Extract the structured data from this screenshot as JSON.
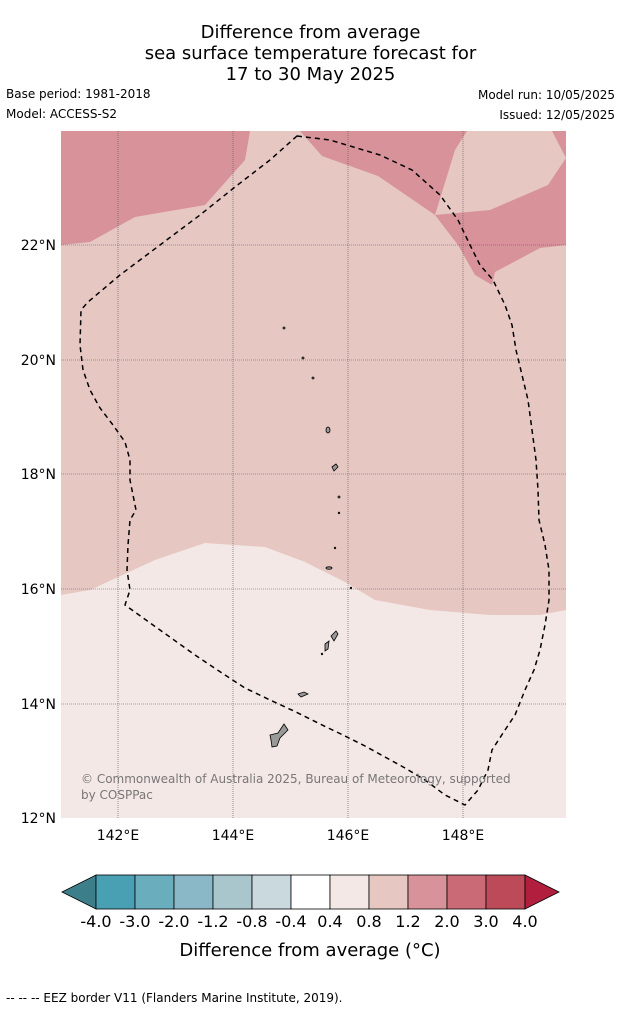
{
  "title": {
    "line1": "Difference from average",
    "line2": "sea surface temperature forecast for",
    "line3": "17 to 30 May 2025"
  },
  "meta": {
    "base_period": "Base period: 1981-2018",
    "model": "Model: ACCESS-S2",
    "model_run": "Model run: 10/05/2025",
    "issued": "Issued: 12/05/2025"
  },
  "map": {
    "lon_range": [
      141.0,
      149.8
    ],
    "lat_range": [
      12.0,
      24.0
    ],
    "lat_ticks": [
      "12°N",
      "14°N",
      "16°N",
      "18°N",
      "20°N",
      "22°N"
    ],
    "lon_ticks": [
      "142°E",
      "144°E",
      "146°E",
      "148°E"
    ],
    "copyright_line1": "© Commonwealth of Australia 2025, Bureau of Meteorology, supported",
    "copyright_line2": "by COSPPac",
    "zones": [
      {
        "category": "0.4 to 0.8",
        "color": "#f4e8e6"
      },
      {
        "category": "0.8 to 1.2",
        "color": "#e6c7c2"
      },
      {
        "category": "1.2 to 2.0",
        "color": "#d7929a"
      }
    ],
    "border_style": "dashed black line"
  },
  "colorbar": {
    "labels": [
      "-4.0",
      "-3.0",
      "-2.0",
      "-1.2",
      "-0.8",
      "-0.4",
      "0.4",
      "0.8",
      "1.2",
      "2.0",
      "3.0",
      "4.0"
    ],
    "colors": [
      "#3c7f8b",
      "#4aa0b3",
      "#6aaebd",
      "#8bb8c6",
      "#a9c6cd",
      "#c9d9de",
      "#ffffff",
      "#f4e8e6",
      "#e6c7c2",
      "#d7929a",
      "#c96a76",
      "#bd4a58",
      "#b21f3e"
    ],
    "title": "Difference from average (°C)"
  },
  "footer": "--  --  -- EEZ border V11 (Flanders Marine Institute, 2019)."
}
